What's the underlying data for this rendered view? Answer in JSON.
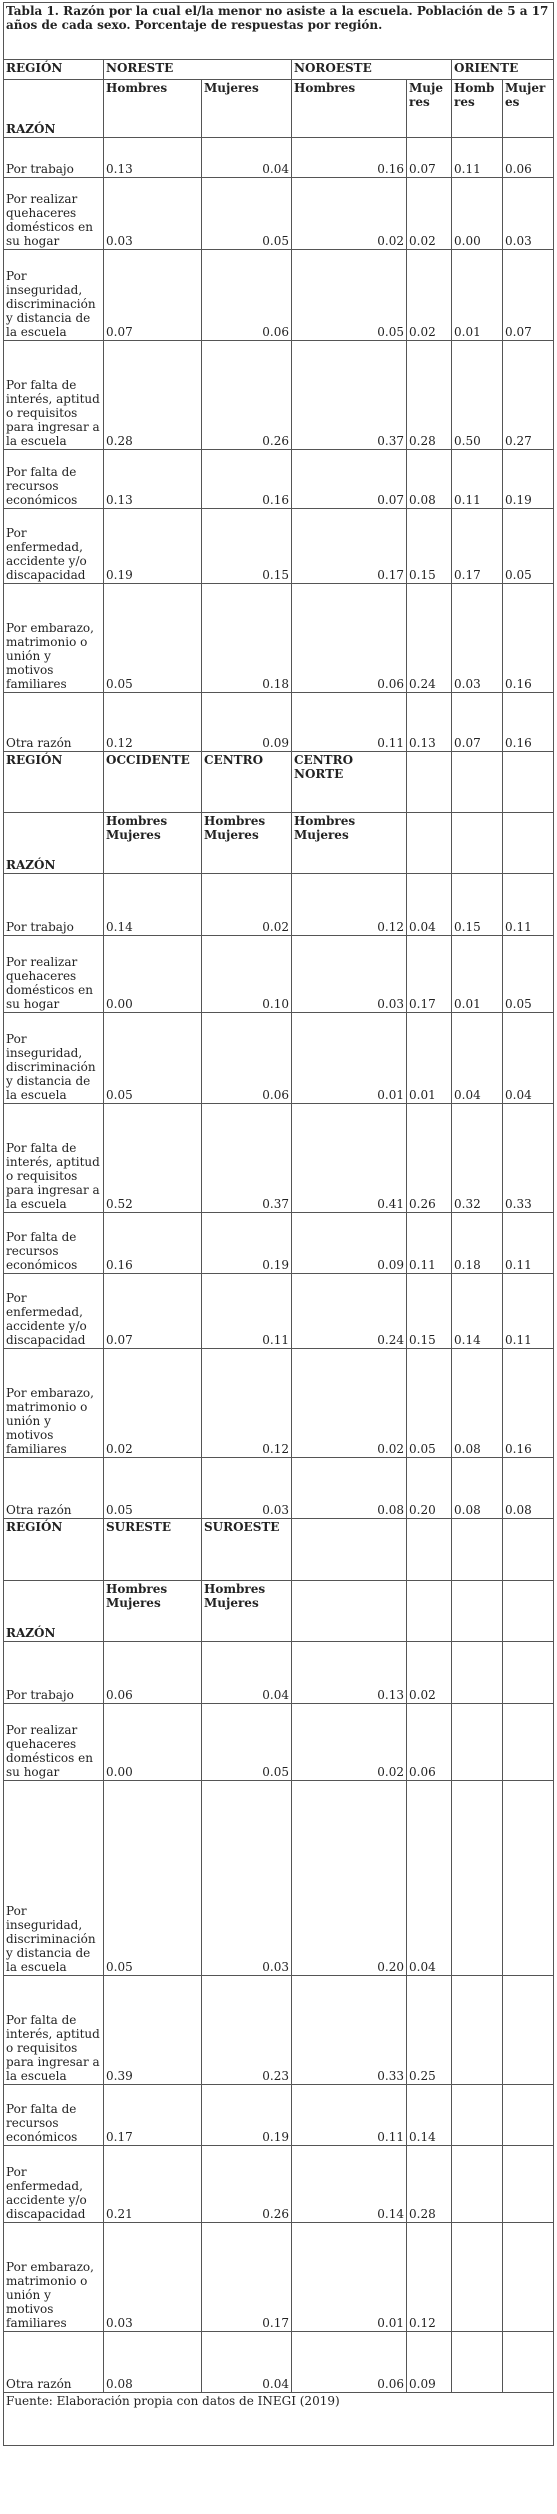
{
  "title": "Tabla 1. Razón por la cual el/la menor no asiste a la escuela. Población de 5 a 17 años de cada sexo. Porcentaje de respuestas por región.",
  "blocks": [
    {
      "region_label": "REGIÓN",
      "regions": [
        "NORESTE",
        "NOROESTE",
        "ORIENTE"
      ],
      "reason_label": "RAZÓN",
      "subheaders": [
        "Hombres",
        "Mujeres",
        "Hombres",
        "Mujeres",
        "Hombres",
        "Mujeres"
      ],
      "rows": [
        {
          "reason": "Por trabajo",
          "values": [
            "0.13",
            "0.04",
            "0.16",
            "0.07",
            "0.11",
            "0.06"
          ]
        },
        {
          "reason": "Por realizar quehaceres domésticos en su hogar",
          "values": [
            "0.03",
            "0.05",
            "0.02",
            "0.02",
            "0.00",
            "0.03"
          ]
        },
        {
          "reason": "Por inseguridad, discriminación y distancia de la escuela",
          "values": [
            "0.07",
            "0.06",
            "0.05",
            "0.02",
            "0.01",
            "0.07"
          ]
        },
        {
          "reason": "Por falta de interés, aptitud o requisitos para ingresar a la escuela",
          "values": [
            "0.28",
            "0.26",
            "0.37",
            "0.28",
            "0.50",
            "0.27"
          ]
        },
        {
          "reason": "Por falta de recursos económicos",
          "values": [
            "0.13",
            "0.16",
            "0.07",
            "0.08",
            "0.11",
            "0.19"
          ]
        },
        {
          "reason": "Por enfermedad, accidente y/o discapacidad",
          "values": [
            "0.19",
            "0.15",
            "0.17",
            "0.15",
            "0.17",
            "0.05"
          ]
        },
        {
          "reason": "Por embarazo, matrimonio o unión y motivos familiares",
          "values": [
            "0.05",
            "0.18",
            "0.06",
            "0.24",
            "0.03",
            "0.16"
          ]
        },
        {
          "reason": "Otra razón",
          "values": [
            "0.12",
            "0.09",
            "0.11",
            "0.13",
            "0.07",
            "0.16"
          ]
        }
      ]
    },
    {
      "region_label": "REGIÓN",
      "regions": [
        "OCCIDENTE",
        "CENTRO",
        "CENTRO NORTE"
      ],
      "reason_label": "RAZÓN",
      "subheaders": [
        "Hombres Mujeres",
        "Hombres Mujeres",
        "Hombres Mujeres"
      ],
      "rows": [
        {
          "reason": "Por trabajo",
          "values": [
            "0.14",
            "0.02",
            "0.12",
            "0.04",
            "0.15",
            "0.11"
          ]
        },
        {
          "reason": "Por realizar quehaceres domésticos en su hogar",
          "values": [
            "0.00",
            "0.10",
            "0.03",
            "0.17",
            "0.01",
            "0.05"
          ]
        },
        {
          "reason": "Por inseguridad, discriminación y distancia de la escuela",
          "values": [
            "0.05",
            "0.06",
            "0.01",
            "0.01",
            "0.04",
            "0.04"
          ]
        },
        {
          "reason": "Por falta de interés, aptitud o requisitos para ingresar a la escuela",
          "values": [
            "0.52",
            "0.37",
            "0.41",
            "0.26",
            "0.32",
            "0.33"
          ]
        },
        {
          "reason": "Por falta de recursos económicos",
          "values": [
            "0.16",
            "0.19",
            "0.09",
            "0.11",
            "0.18",
            "0.11"
          ]
        },
        {
          "reason": "Por enfermedad, accidente y/o discapacidad",
          "values": [
            "0.07",
            "0.11",
            "0.24",
            "0.15",
            "0.14",
            "0.11"
          ]
        },
        {
          "reason": "Por embarazo, matrimonio o unión y motivos familiares",
          "values": [
            "0.02",
            "0.12",
            "0.02",
            "0.05",
            "0.08",
            "0.16"
          ]
        },
        {
          "reason": "Otra razón",
          "values": [
            "0.05",
            "0.03",
            "0.08",
            "0.20",
            "0.08",
            "0.08"
          ]
        }
      ]
    },
    {
      "region_label": "REGIÓN",
      "regions": [
        "SURESTE",
        "SUROESTE"
      ],
      "reason_label": "RAZÓN",
      "subheaders": [
        "Hombres Mujeres",
        "Hombres Mujeres"
      ],
      "rows": [
        {
          "reason": "Por trabajo",
          "values": [
            "0.06",
            "0.04",
            "0.13",
            "0.02"
          ]
        },
        {
          "reason": "Por realizar quehaceres domésticos en su hogar",
          "values": [
            "0.00",
            "0.05",
            "0.02",
            "0.06"
          ]
        },
        {
          "reason": "Por inseguridad, discriminación y distancia de la escuela",
          "values": [
            "0.05",
            "0.03",
            "0.20",
            "0.04"
          ]
        },
        {
          "reason": "Por falta de interés, aptitud o requisitos para ingresar a la escuela",
          "values": [
            "0.39",
            "0.23",
            "0.33",
            "0.25"
          ]
        },
        {
          "reason": "Por falta de recursos económicos",
          "values": [
            "0.17",
            "0.19",
            "0.11",
            "0.14"
          ]
        },
        {
          "reason": "Por enfermedad, accidente y/o discapacidad",
          "values": [
            "0.21",
            "0.26",
            "0.14",
            "0.28"
          ]
        },
        {
          "reason": "Por embarazo, matrimonio o unión y motivos familiares",
          "values": [
            "0.03",
            "0.17",
            "0.01",
            "0.12"
          ]
        },
        {
          "reason": "Otra razón",
          "values": [
            "0.08",
            "0.04",
            "0.06",
            "0.09"
          ]
        }
      ]
    }
  ],
  "source": "Fuente: Elaboración propia con datos de INEGI (2019)"
}
